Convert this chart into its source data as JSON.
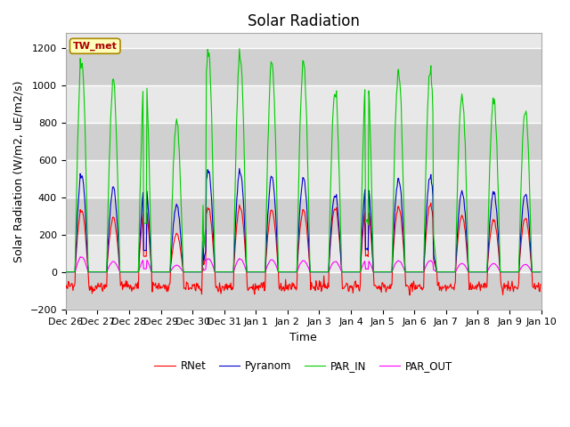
{
  "title": "Solar Radiation",
  "ylabel": "Solar Radiation (W/m2, uE/m2/s)",
  "xlabel": "Time",
  "ylim": [
    -200,
    1280
  ],
  "yticks": [
    -200,
    0,
    200,
    400,
    600,
    800,
    1000,
    1200
  ],
  "station_label": "TW_met",
  "legend_entries": [
    "RNet",
    "Pyranom",
    "PAR_IN",
    "PAR_OUT"
  ],
  "line_colors": [
    "#ff0000",
    "#0000cc",
    "#00cc00",
    "#ff00ff"
  ],
  "fig_facecolor": "#ffffff",
  "ax_facecolor": "#e8e8e8",
  "grid_color": "#ffffff",
  "xtick_labels": [
    "Dec 26",
    "Dec 27",
    "Dec 28",
    "Dec 29",
    "Dec 30",
    "Dec 31",
    "Jan 1",
    "Jan 2",
    "Jan 3",
    "Jan 4",
    "Jan 5",
    "Jan 6",
    "Jan 7",
    "Jan 8",
    "Jan 9",
    "Jan 10"
  ],
  "title_fontsize": 12,
  "label_fontsize": 9,
  "tick_fontsize": 8,
  "n_days": 15,
  "pts_per_day": 48,
  "par_in_amps": [
    1130,
    1020,
    1090,
    790,
    1175,
    1165,
    1120,
    1120,
    960,
    1110,
    1080,
    1080,
    940,
    930,
    870
  ],
  "pyranom_amps": [
    520,
    450,
    480,
    350,
    540,
    540,
    510,
    500,
    410,
    500,
    500,
    510,
    430,
    430,
    420
  ],
  "rnet_amps": [
    330,
    290,
    350,
    200,
    340,
    350,
    330,
    330,
    340,
    360,
    350,
    360,
    300,
    280,
    290
  ],
  "par_out_amps": [
    80,
    55,
    70,
    35,
    70,
    70,
    65,
    60,
    55,
    65,
    60,
    60,
    45,
    45,
    40
  ],
  "rnet_night": -80,
  "rnet_night_std": 15
}
